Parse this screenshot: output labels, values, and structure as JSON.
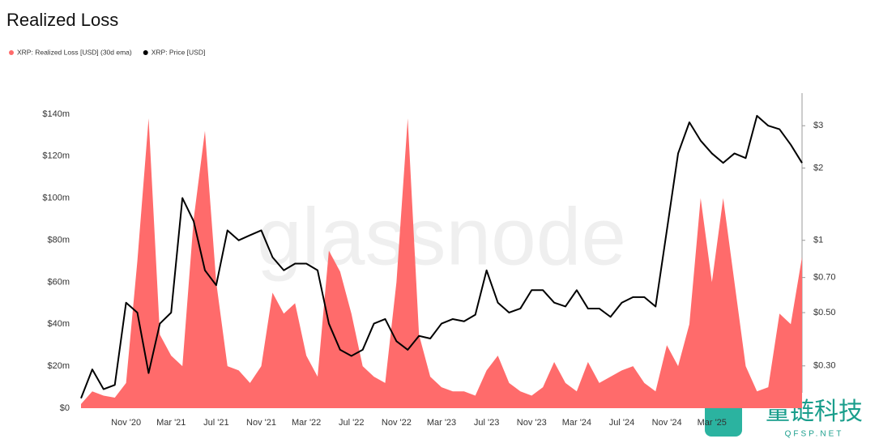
{
  "chart_data": {
    "type": "area-line",
    "title": "Realized Loss",
    "watermark": "glassnode",
    "badge": {
      "name": "量链科技",
      "site": "QFSP.NET"
    },
    "categories": [
      null,
      null,
      null,
      null,
      "Nov '20",
      null,
      null,
      null,
      "Mar '21",
      null,
      null,
      null,
      "Jul '21",
      null,
      null,
      null,
      "Nov '21",
      null,
      null,
      null,
      "Mar '22",
      null,
      null,
      null,
      "Jul '22",
      null,
      null,
      null,
      "Nov '22",
      null,
      null,
      null,
      "Mar '23",
      null,
      null,
      null,
      "Jul '23",
      null,
      null,
      null,
      "Nov '23",
      null,
      null,
      null,
      "Mar '24",
      null,
      null,
      null,
      "Jul '24",
      null,
      null,
      null,
      "Nov '24",
      null,
      null,
      null,
      "Mar '25",
      null,
      null,
      null,
      null,
      null,
      null,
      null,
      null
    ],
    "series": [
      {
        "name": "XRP: Realized Loss [USD] (30d ema)",
        "kind": "area",
        "color": "#ff6b6b",
        "values": [
          2,
          8,
          6,
          5,
          12,
          70,
          138,
          35,
          25,
          20,
          90,
          132,
          60,
          20,
          18,
          12,
          20,
          55,
          45,
          50,
          25,
          15,
          75,
          65,
          45,
          20,
          15,
          12,
          60,
          138,
          35,
          15,
          10,
          8,
          8,
          6,
          18,
          25,
          12,
          8,
          6,
          10,
          22,
          12,
          8,
          22,
          12,
          15,
          18,
          20,
          12,
          8,
          30,
          20,
          40,
          100,
          60,
          100,
          60,
          20,
          8,
          10,
          45,
          40,
          72
        ]
      },
      {
        "name": "XRP: Price [USD]",
        "kind": "line",
        "axis": "y2",
        "color": "#000000",
        "values": [
          0.22,
          0.29,
          0.24,
          0.25,
          0.55,
          0.5,
          0.28,
          0.45,
          0.5,
          1.5,
          1.2,
          0.75,
          0.65,
          1.1,
          1.0,
          1.05,
          1.1,
          0.85,
          0.75,
          0.8,
          0.8,
          0.75,
          0.45,
          0.35,
          0.33,
          0.35,
          0.45,
          0.47,
          0.38,
          0.35,
          0.4,
          0.39,
          0.45,
          0.47,
          0.46,
          0.49,
          0.75,
          0.55,
          0.5,
          0.52,
          0.62,
          0.62,
          0.55,
          0.53,
          0.62,
          0.52,
          0.52,
          0.48,
          0.55,
          0.58,
          0.58,
          0.53,
          1.1,
          2.3,
          3.1,
          2.6,
          2.3,
          2.1,
          2.3,
          2.2,
          3.3,
          3.0,
          2.9,
          2.5,
          2.1
        ]
      }
    ],
    "ylim": [
      0,
      150
    ],
    "yticks": [
      {
        "value": 0,
        "label": "$0"
      },
      {
        "value": 20,
        "label": "$20m"
      },
      {
        "value": 40,
        "label": "$40m"
      },
      {
        "value": 60,
        "label": "$60m"
      },
      {
        "value": 80,
        "label": "$80m"
      },
      {
        "value": 100,
        "label": "$100m"
      },
      {
        "value": 120,
        "label": "$120m"
      },
      {
        "value": 140,
        "label": "$140m"
      }
    ],
    "y2lim": [
      0.2,
      4.1
    ],
    "y2log": true,
    "y2ticks": [
      {
        "value": 0.3,
        "label": "$0.30"
      },
      {
        "value": 0.5,
        "label": "$0.50"
      },
      {
        "value": 0.7,
        "label": "$0.70"
      },
      {
        "value": 1,
        "label": "$1"
      },
      {
        "value": 2,
        "label": "$2"
      },
      {
        "value": 3,
        "label": "$3"
      }
    ],
    "grid": false
  }
}
